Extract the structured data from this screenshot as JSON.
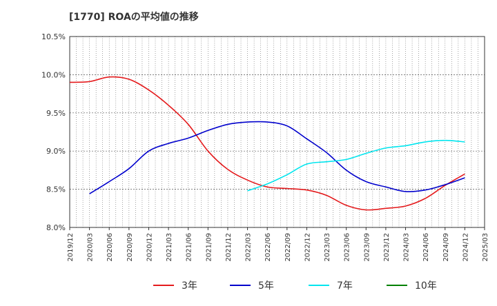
{
  "title": "[1770]  ROAの平均値の推移",
  "chart_data": {
    "type": "line",
    "title": "[1770]  ROAの平均値の推移",
    "xlabel": "",
    "ylabel": "",
    "ylim": [
      8.0,
      10.5
    ],
    "yticks": [
      "8.0%",
      "8.5%",
      "9.0%",
      "9.5%",
      "10.0%",
      "10.5%"
    ],
    "ytick_values": [
      8.0,
      8.5,
      9.0,
      9.5,
      10.0,
      10.5
    ],
    "x_categories": [
      "2019/12",
      "2020/03",
      "2020/06",
      "2020/09",
      "2020/12",
      "2021/03",
      "2021/06",
      "2021/09",
      "2021/12",
      "2022/03",
      "2022/06",
      "2022/09",
      "2022/12",
      "2023/03",
      "2023/06",
      "2023/09",
      "2023/12",
      "2024/03",
      "2024/06",
      "2024/09",
      "2024/12",
      "2025/03"
    ],
    "grid": true,
    "legend_position": "bottom",
    "series": [
      {
        "name": "3年",
        "color": "#e41a1c",
        "start_index": 0,
        "values": [
          9.9,
          9.91,
          9.97,
          9.94,
          9.8,
          9.6,
          9.35,
          9.0,
          8.76,
          8.62,
          8.53,
          8.51,
          8.49,
          8.42,
          8.29,
          8.23,
          8.25,
          8.28,
          8.38,
          8.55,
          8.7
        ]
      },
      {
        "name": "5年",
        "color": "#0000cc",
        "start_index": 1,
        "values": [
          8.44,
          8.6,
          8.77,
          9.0,
          9.1,
          9.17,
          9.27,
          9.35,
          9.38,
          9.38,
          9.33,
          9.16,
          8.98,
          8.75,
          8.6,
          8.53,
          8.47,
          8.49,
          8.56,
          8.65
        ]
      },
      {
        "name": "7年",
        "color": "#00e5ee",
        "start_index": 9,
        "values": [
          8.48,
          8.57,
          8.69,
          8.83,
          8.86,
          8.89,
          8.97,
          9.04,
          9.07,
          9.12,
          9.14,
          9.12
        ]
      },
      {
        "name": "10年",
        "color": "#008000",
        "start_index": 0,
        "values": []
      }
    ]
  }
}
